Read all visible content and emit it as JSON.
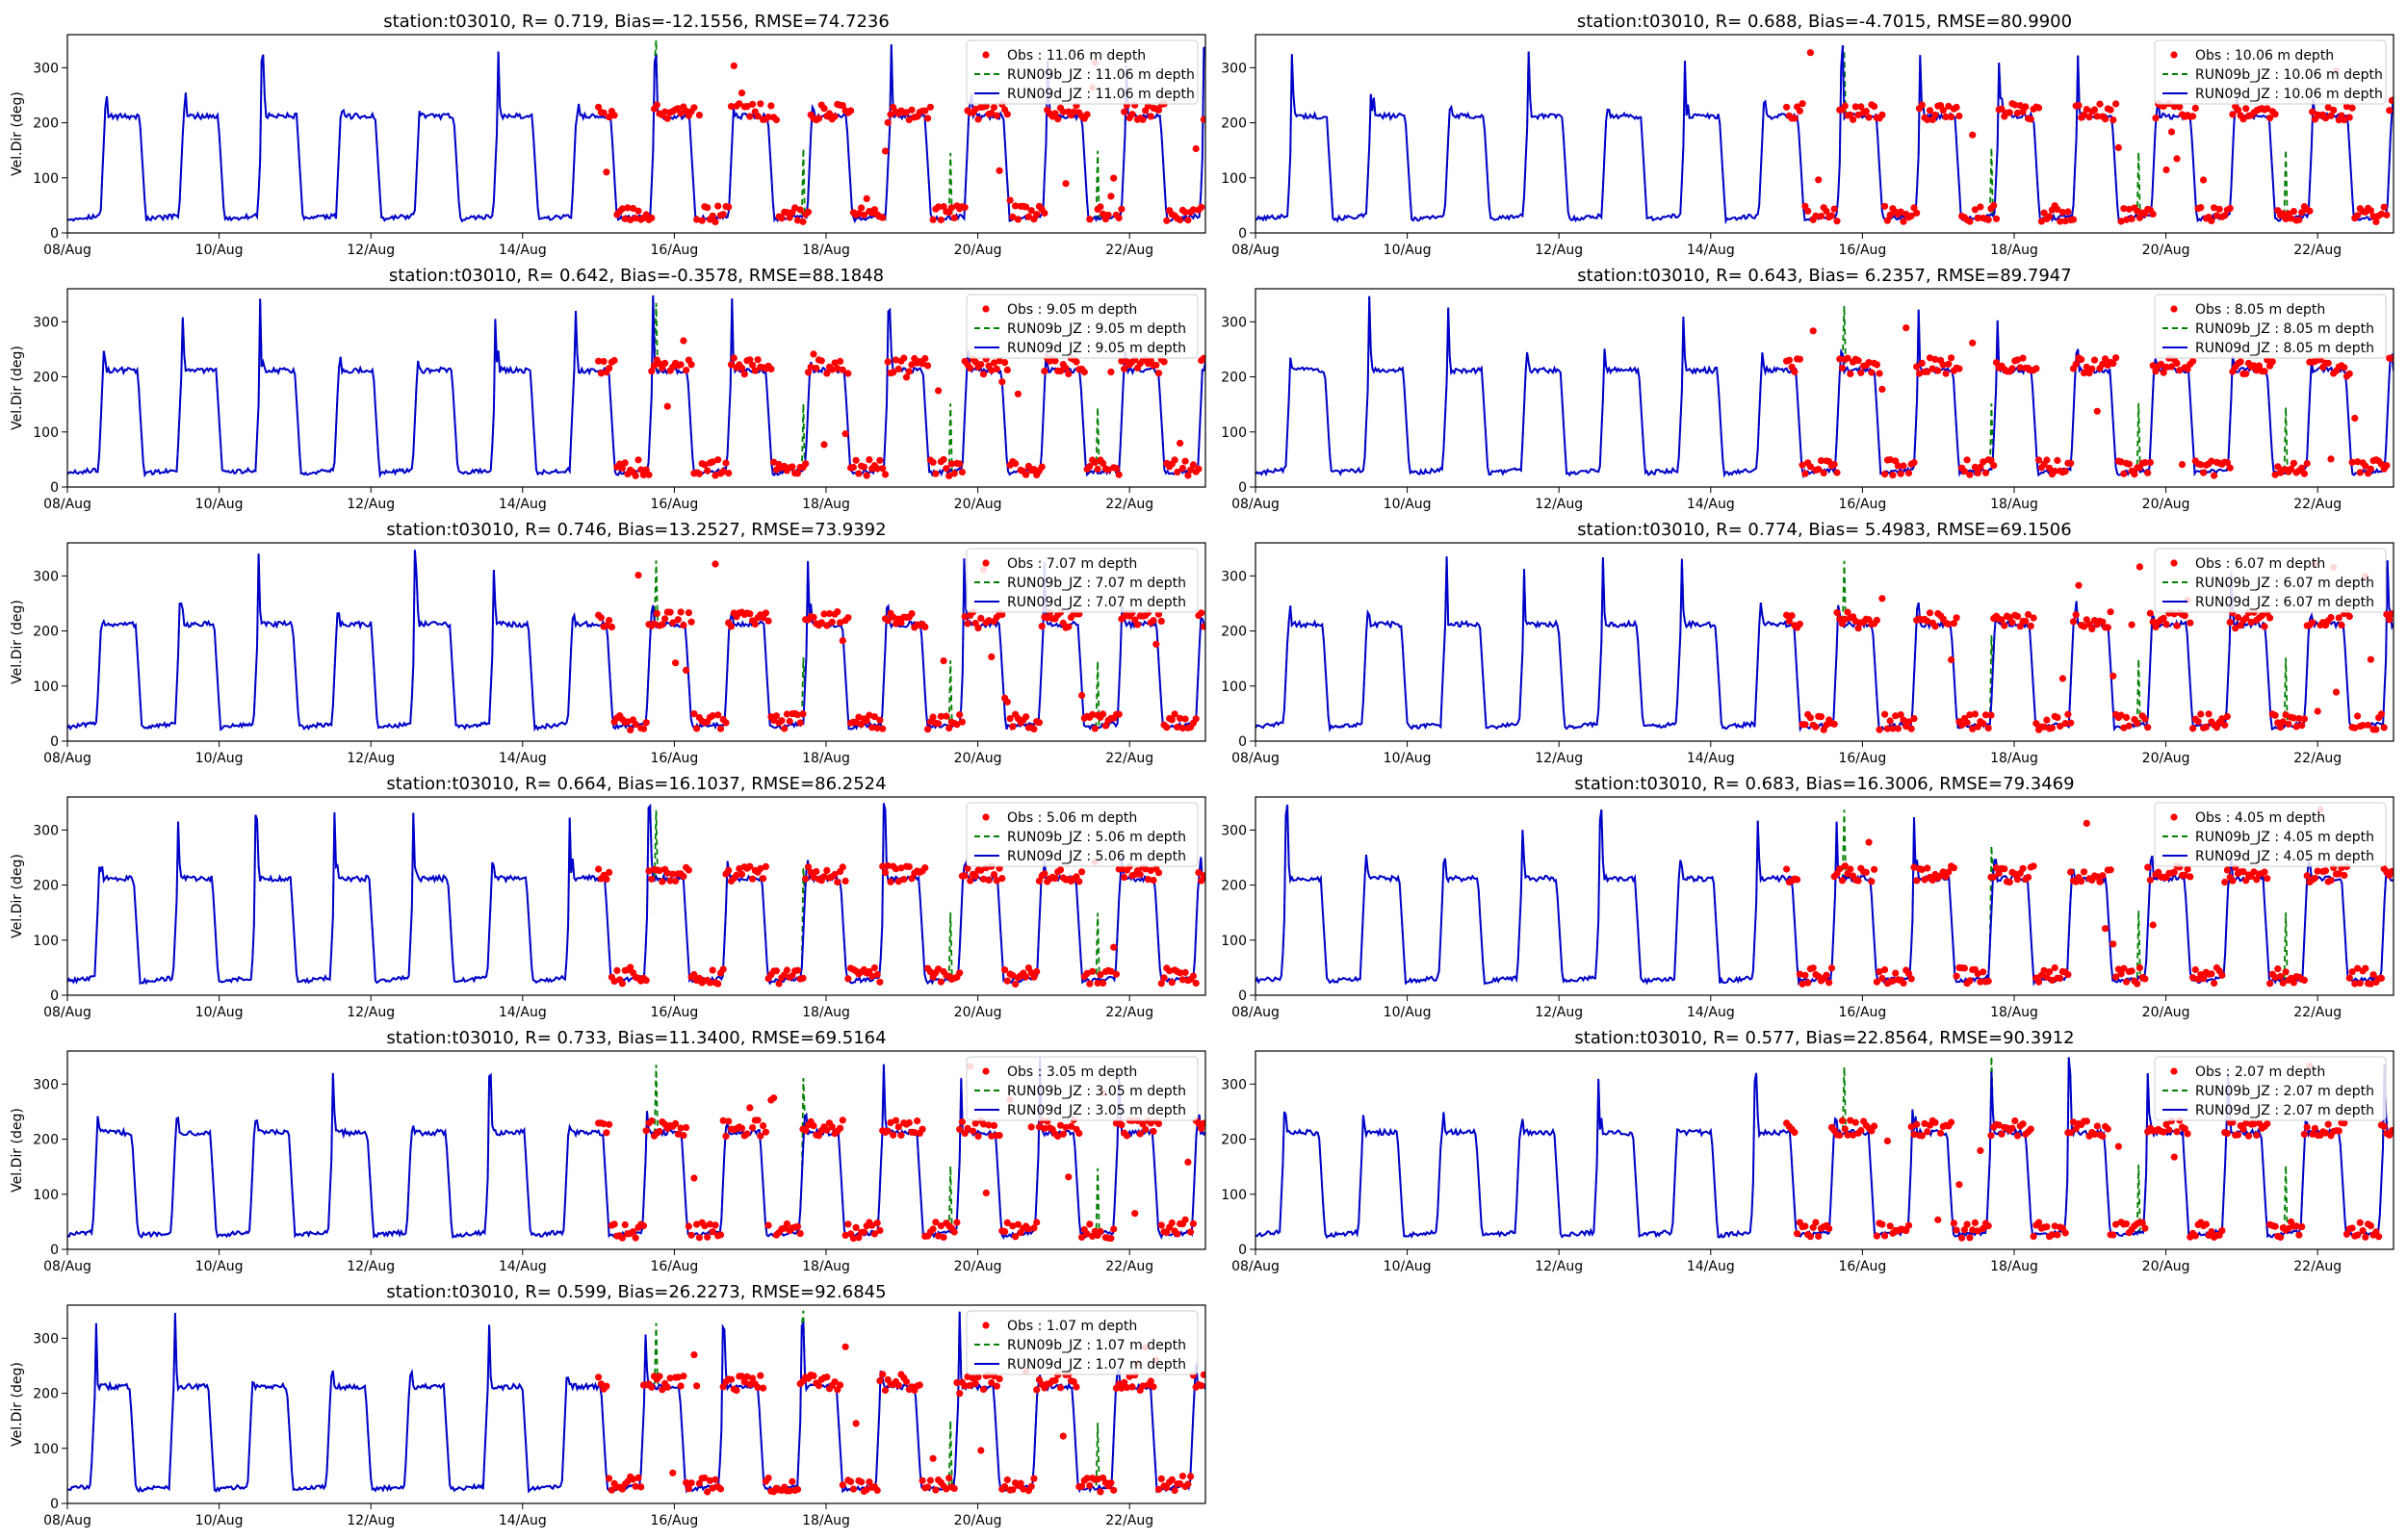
{
  "chart_data": [
    {
      "type": "line",
      "title": "station:t03010, R= 0.719, Bias=-12.1556, RMSE=74.7236",
      "ylabel": "Vel.Dir (deg)",
      "depth": "11.06",
      "legend": [
        "Obs : 11.06 m depth",
        "RUN09b_JZ : 11.06 m depth",
        "RUN09d_JZ : 11.06 m depth"
      ]
    },
    {
      "type": "line",
      "title": "station:t03010, R= 0.688, Bias=-4.7015, RMSE=80.9900",
      "ylabel": "",
      "depth": "10.06",
      "legend": [
        "Obs : 10.06 m depth",
        "RUN09b_JZ : 10.06 m depth",
        "RUN09d_JZ : 10.06 m depth"
      ]
    },
    {
      "type": "line",
      "title": "station:t03010, R= 0.642, Bias=-0.3578, RMSE=88.1848",
      "ylabel": "Vel.Dir (deg)",
      "depth": "9.05",
      "legend": [
        "Obs : 9.05 m depth",
        "RUN09b_JZ : 9.05 m depth",
        "RUN09d_JZ : 9.05 m depth"
      ]
    },
    {
      "type": "line",
      "title": "station:t03010, R= 0.643, Bias= 6.2357, RMSE=89.7947",
      "ylabel": "",
      "depth": "8.05",
      "legend": [
        "Obs : 8.05 m depth",
        "RUN09b_JZ : 8.05 m depth",
        "RUN09d_JZ : 8.05 m depth"
      ]
    },
    {
      "type": "line",
      "title": "station:t03010, R= 0.746, Bias=13.2527, RMSE=73.9392",
      "ylabel": "Vel.Dir (deg)",
      "depth": "7.07",
      "legend": [
        "Obs : 7.07 m depth",
        "RUN09b_JZ : 7.07 m depth",
        "RUN09d_JZ : 7.07 m depth"
      ]
    },
    {
      "type": "line",
      "title": "station:t03010, R= 0.774, Bias= 5.4983, RMSE=69.1506",
      "ylabel": "",
      "depth": "6.07",
      "legend": [
        "Obs : 6.07 m depth",
        "RUN09b_JZ : 6.07 m depth",
        "RUN09d_JZ : 6.07 m depth"
      ]
    },
    {
      "type": "line",
      "title": "station:t03010, R= 0.664, Bias=16.1037, RMSE=86.2524",
      "ylabel": "Vel.Dir (deg)",
      "depth": "5.06",
      "legend": [
        "Obs : 5.06 m depth",
        "RUN09b_JZ : 5.06 m depth",
        "RUN09d_JZ : 5.06 m depth"
      ]
    },
    {
      "type": "line",
      "title": "station:t03010, R= 0.683, Bias=16.3006, RMSE=79.3469",
      "ylabel": "",
      "depth": "4.05",
      "legend": [
        "Obs : 4.05 m depth",
        "RUN09b_JZ : 4.05 m depth",
        "RUN09d_JZ : 4.05 m depth"
      ]
    },
    {
      "type": "line",
      "title": "station:t03010, R= 0.733, Bias=11.3400, RMSE=69.5164",
      "ylabel": "Vel.Dir (deg)",
      "depth": "3.05",
      "legend": [
        "Obs : 3.05 m depth",
        "RUN09b_JZ : 3.05 m depth",
        "RUN09d_JZ : 3.05 m depth"
      ]
    },
    {
      "type": "line",
      "title": "station:t03010, R= 0.577, Bias=22.8564, RMSE=90.3912",
      "ylabel": "",
      "depth": "2.07",
      "legend": [
        "Obs : 2.07 m depth",
        "RUN09b_JZ : 2.07 m depth",
        "RUN09d_JZ : 2.07 m depth"
      ]
    },
    {
      "type": "line",
      "title": "station:t03010, R= 0.599, Bias=26.2273, RMSE=92.6845",
      "ylabel": "Vel.Dir (deg)",
      "depth": "1.07",
      "legend": [
        "Obs : 1.07 m depth",
        "RUN09b_JZ : 1.07 m depth",
        "RUN09d_JZ : 1.07 m depth"
      ]
    }
  ],
  "axes": {
    "xticks": [
      "08/Aug",
      "10/Aug",
      "12/Aug",
      "14/Aug",
      "16/Aug",
      "18/Aug",
      "20/Aug",
      "22/Aug"
    ],
    "xlim_days": [
      "2022-08-08",
      "2022-08-23"
    ],
    "yticks": [
      0,
      100,
      200,
      300
    ],
    "ylim": [
      0,
      360
    ],
    "obs_start": "2022-08-15"
  },
  "colors": {
    "obs": "#ff0000",
    "run09b": "#008000",
    "run09d": "#0000cc"
  }
}
